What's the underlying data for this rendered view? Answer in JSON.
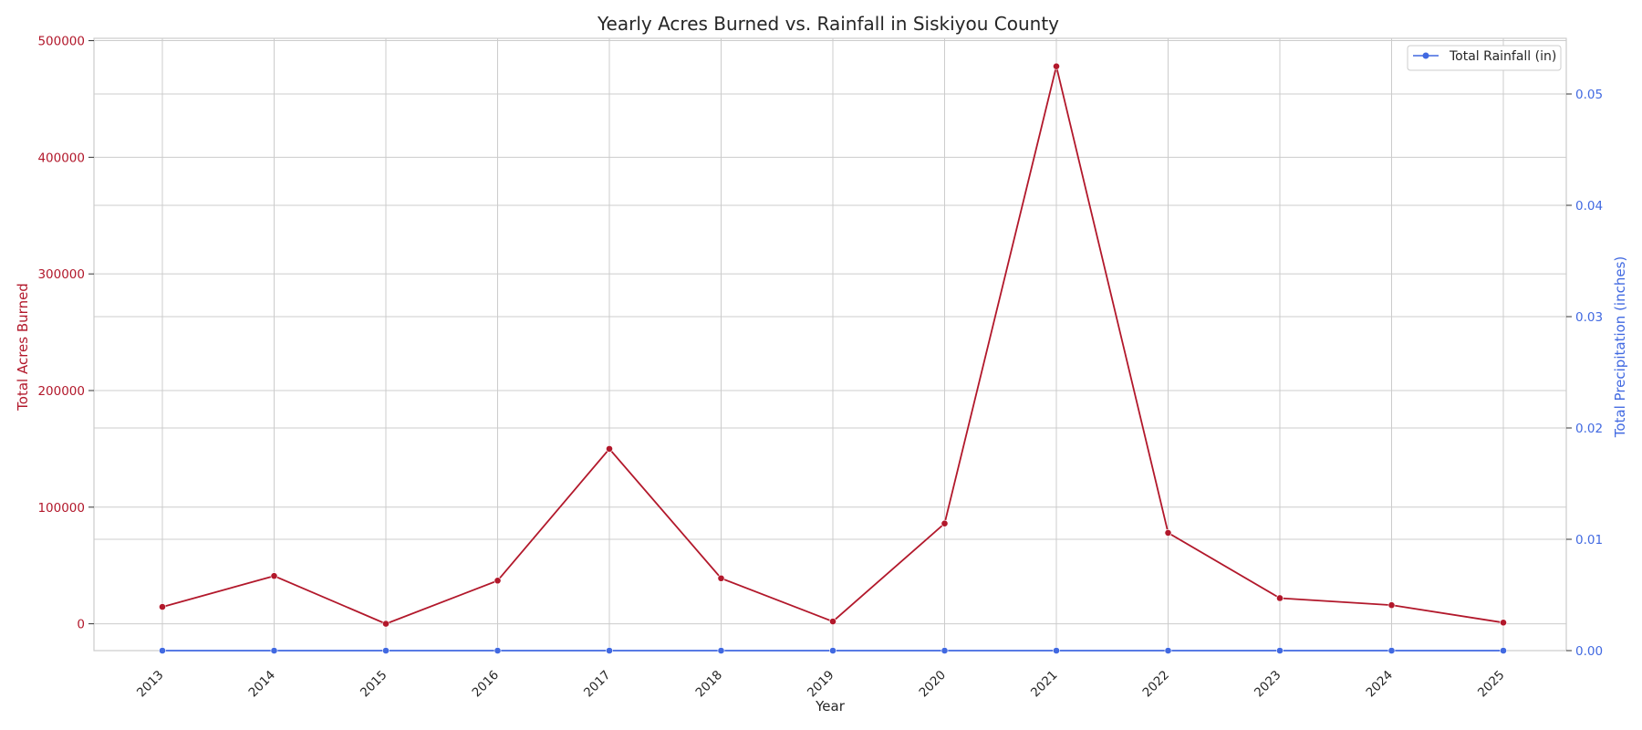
{
  "chart_data": {
    "type": "line",
    "title": "Yearly Acres Burned vs. Rainfall in Siskiyou County",
    "xlabel": "Year",
    "ylabel_left": "Total Acres Burned",
    "ylabel_right": "Total Precipitation (inches)",
    "x": [
      "2013",
      "2014",
      "2015",
      "2016",
      "2017",
      "2018",
      "2019",
      "2020",
      "2021",
      "2022",
      "2023",
      "2024",
      "2025"
    ],
    "series": [
      {
        "axis": "left",
        "color": "#b2182b",
        "values": [
          14500,
          41000,
          0,
          37000,
          150000,
          39000,
          2000,
          86000,
          478000,
          78000,
          22000,
          16000,
          1000
        ]
      },
      {
        "name": "Total Rainfall (in)",
        "axis": "right",
        "color": "#4169e1",
        "values": [
          0,
          0,
          0,
          0,
          0,
          0,
          0,
          0,
          0,
          0,
          0,
          0,
          0
        ]
      }
    ],
    "ylim_left": [
      -23000,
      502000
    ],
    "yticks_left": [
      "0",
      "100000",
      "200000",
      "300000",
      "400000",
      "500000"
    ],
    "ylim_right": [
      0,
      0.055
    ],
    "yticks_right": [
      "0.00",
      "0.01",
      "0.02",
      "0.03",
      "0.04",
      "0.05"
    ],
    "grid": true,
    "legend_position": "top-right",
    "legend": [
      "Total Rainfall (in)"
    ]
  }
}
